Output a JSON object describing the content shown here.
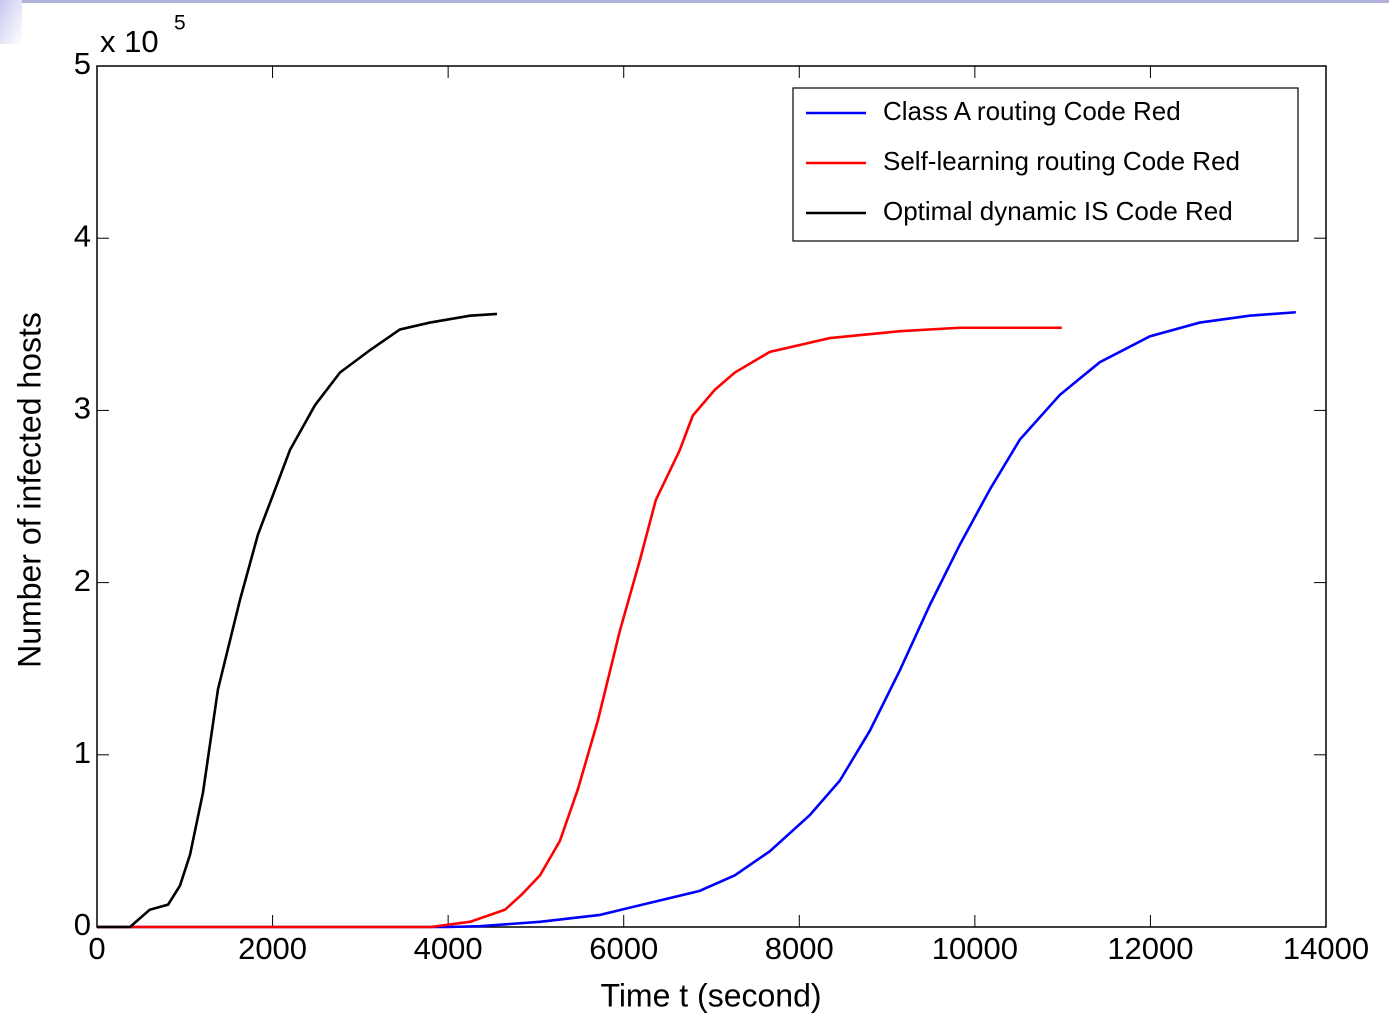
{
  "chart_data": {
    "type": "line",
    "x_label": "Time t (second)",
    "y_label": "Number of infected hosts",
    "y_multiplier": "x 10",
    "y_exponent": "5",
    "xlim": [
      0,
      14000
    ],
    "xticks": [
      0,
      2000,
      4000,
      6000,
      8000,
      10000,
      12000,
      14000
    ],
    "ylim": [
      0,
      5
    ],
    "yticks": [
      0,
      1,
      2,
      3,
      4,
      5
    ],
    "grid": false,
    "legend": "upper right",
    "series": [
      {
        "name": "Class A routing Code Red",
        "color": "#0000ff",
        "x": [
          0,
          4000,
          4363,
          5046,
          5728,
          6297,
          6866,
          7266,
          7665,
          8120,
          8462,
          8804,
          9145,
          9487,
          9829,
          10170,
          10512,
          10968,
          11423,
          11993,
          12562,
          13132,
          13656
        ],
        "values": [
          0,
          0,
          0.005,
          0.03,
          0.07,
          0.14,
          0.21,
          0.3,
          0.44,
          0.65,
          0.85,
          1.14,
          1.49,
          1.87,
          2.22,
          2.54,
          2.83,
          3.09,
          3.28,
          3.43,
          3.51,
          3.55,
          3.57
        ]
      },
      {
        "name": "Self-learning routing Code Red",
        "color": "#ff0000",
        "x": [
          0,
          3800,
          4249,
          4647,
          4841,
          5046,
          5273,
          5478,
          5706,
          5956,
          6184,
          6366,
          6639,
          6787,
          7038,
          7266,
          7665,
          8006,
          8348,
          9145,
          9829,
          10990
        ],
        "values": [
          0,
          0,
          0.03,
          0.1,
          0.19,
          0.3,
          0.5,
          0.8,
          1.2,
          1.72,
          2.13,
          2.48,
          2.77,
          2.97,
          3.12,
          3.22,
          3.34,
          3.38,
          3.42,
          3.46,
          3.48,
          3.48
        ]
      },
      {
        "name": "Optimal dynamic IS Code Red",
        "color": "#000000",
        "x": [
          0,
          376,
          600,
          810,
          945,
          1060,
          1207,
          1378,
          1629,
          1834,
          2028,
          2198,
          2483,
          2768,
          3110,
          3451,
          3793,
          4249,
          4556
        ],
        "values": [
          0,
          0,
          0.1,
          0.13,
          0.24,
          0.42,
          0.78,
          1.38,
          1.9,
          2.28,
          2.54,
          2.77,
          3.03,
          3.22,
          3.35,
          3.47,
          3.51,
          3.55,
          3.56
        ]
      }
    ]
  }
}
